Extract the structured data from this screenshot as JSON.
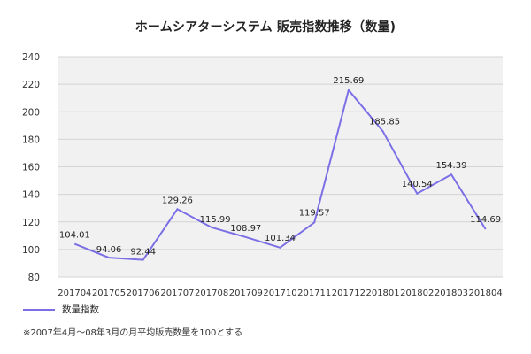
{
  "chart_data": {
    "type": "line",
    "title": "ホームシアターシステム 販売指数推移（数量)",
    "categories": [
      "201704",
      "201705",
      "201706",
      "201707",
      "201708",
      "201709",
      "201710",
      "201711",
      "201712",
      "201801",
      "201802",
      "201803",
      "201804"
    ],
    "series": [
      {
        "name": "数量指数",
        "values": [
          104.01,
          94.06,
          92.44,
          129.26,
          115.99,
          108.97,
          101.34,
          119.57,
          215.69,
          185.85,
          140.54,
          154.39,
          114.69
        ],
        "data_labels": [
          "104.01",
          "94.06",
          "92.44",
          "129.26",
          "115.99",
          "108.97",
          "101.34",
          "119.57",
          "215.69",
          "185.85",
          "140.54",
          "154.39",
          "114.69"
        ]
      }
    ],
    "yticks": [
      "80",
      "100",
      "120",
      "140",
      "160",
      "180",
      "200",
      "220",
      "240"
    ],
    "ylim": [
      80,
      240
    ],
    "grid": true,
    "legend_position": "bottom-left",
    "note": "※2007年4月～08年3月の月平均販売数量を100とする"
  },
  "colors": {
    "line": "#7b6fe6",
    "plot_background": "#f1f1f1",
    "grid": "#d4d4d4"
  }
}
